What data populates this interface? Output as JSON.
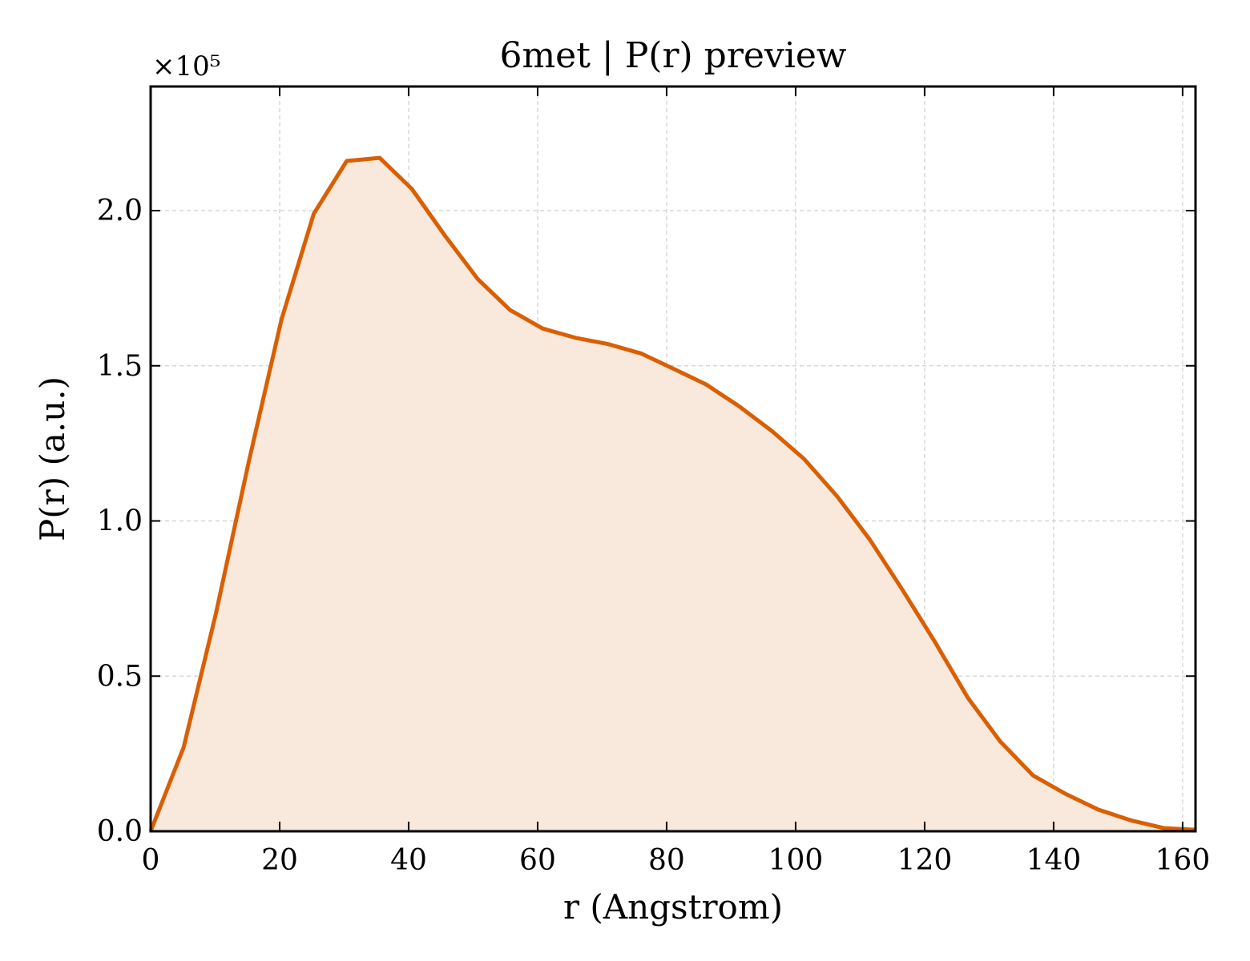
{
  "chart_data": {
    "type": "area",
    "title": "6met | P(r) preview",
    "xlabel": "r (Angstrom)",
    "ylabel": "P(r) (a.u.)",
    "y_multiplier_label": "×10⁵",
    "xlim": [
      0,
      162
    ],
    "ylim": [
      0,
      2.4
    ],
    "x_ticks": [
      0,
      20,
      40,
      60,
      80,
      100,
      120,
      140,
      160
    ],
    "x_tick_labels": [
      "0",
      "20",
      "40",
      "60",
      "80",
      "100",
      "120",
      "140",
      "160"
    ],
    "y_ticks": [
      0,
      0.5,
      1.0,
      1.5,
      2.0
    ],
    "y_tick_labels": [
      "0.0",
      "0.5",
      "1.0",
      "1.5",
      "2.0"
    ],
    "grid": true,
    "line_color": "#d95f02",
    "fill_color": "#f9e8dc",
    "series": [
      {
        "x": [
          0,
          5.1,
          10.1,
          15.2,
          20.3,
          25.3,
          30.4,
          35.5,
          40.5,
          45.6,
          50.7,
          55.7,
          60.8,
          65.9,
          70.9,
          76.0,
          81.1,
          86.1,
          91.2,
          96.3,
          101.3,
          106.4,
          111.5,
          116.5,
          121.6,
          126.7,
          131.7,
          136.8,
          141.9,
          146.9,
          152.0,
          157.1,
          162.0
        ],
        "y": [
          0.0,
          0.27,
          0.7,
          1.19,
          1.65,
          1.99,
          2.16,
          2.17,
          2.07,
          1.92,
          1.78,
          1.68,
          1.62,
          1.59,
          1.57,
          1.54,
          1.49,
          1.44,
          1.37,
          1.29,
          1.2,
          1.08,
          0.94,
          0.78,
          0.61,
          0.43,
          0.29,
          0.18,
          0.12,
          0.07,
          0.035,
          0.01,
          0.005
        ]
      }
    ]
  }
}
